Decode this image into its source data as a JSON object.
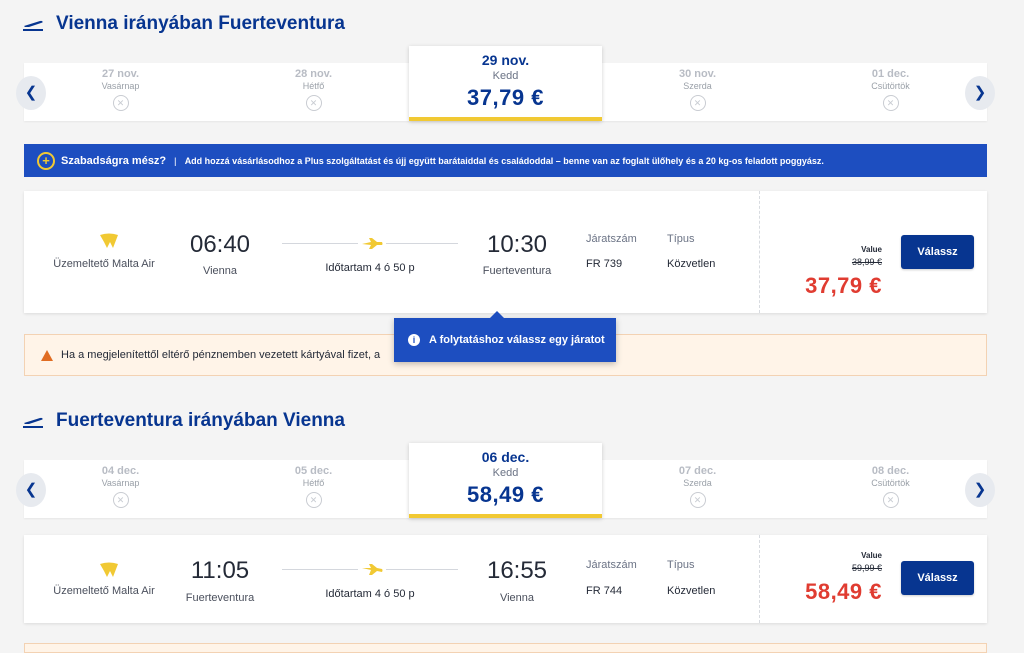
{
  "outbound": {
    "title": "Vienna irányában Fuerteventura",
    "days": [
      {
        "date": "27 nov.",
        "weekday": "Vasárnap"
      },
      {
        "date": "28 nov.",
        "weekday": "Hétfő"
      },
      {
        "date": "29 nov.",
        "weekday": "Kedd",
        "price": "37,79 €"
      },
      {
        "date": "30 nov.",
        "weekday": "Szerda"
      },
      {
        "date": "01 dec.",
        "weekday": "Csütörtök"
      }
    ],
    "flight": {
      "operator": "Üzemeltető Malta Air",
      "dep_time": "06:40",
      "dep_city": "Vienna",
      "duration": "Időtartam 4 ó 50 p",
      "arr_time": "10:30",
      "arr_city": "Fuerteventura",
      "flight_no_label": "Járatszám",
      "flight_no": "FR 739",
      "type_label": "Típus",
      "type": "Közvetlen",
      "fare_label": "Value",
      "old_price": "38,99 €",
      "price": "37,79 €",
      "select_label": "Válassz"
    }
  },
  "promo": {
    "heading": "Szabadságra mész?",
    "separator": "|",
    "text": "Add hozzá vásárlásodhoz a Plus szolgáltatást és újj együtt barátaiddal és családoddal – benne van az foglalt ülőhely és a 20 kg-os feladott poggyász."
  },
  "warning": {
    "text": "Ha a megjelenítettől eltérő pénznemben vezetett kártyával fizet, a"
  },
  "tooltip": {
    "text": "A folytatáshoz válassz egy járatot"
  },
  "inbound": {
    "title": "Fuerteventura irányában Vienna",
    "days": [
      {
        "date": "04 dec.",
        "weekday": "Vasárnap"
      },
      {
        "date": "05 dec.",
        "weekday": "Hétfő"
      },
      {
        "date": "06 dec.",
        "weekday": "Kedd",
        "price": "58,49 €"
      },
      {
        "date": "07 dec.",
        "weekday": "Szerda"
      },
      {
        "date": "08 dec.",
        "weekday": "Csütörtök"
      }
    ],
    "flight": {
      "operator": "Üzemeltető Malta Air",
      "dep_time": "11:05",
      "dep_city": "Fuerteventura",
      "duration": "Időtartam 4 ó 50 p",
      "arr_time": "16:55",
      "arr_city": "Vienna",
      "flight_no_label": "Járatszám",
      "flight_no": "FR 744",
      "type_label": "Típus",
      "type": "Közvetlen",
      "fare_label": "Value",
      "old_price": "59,99 €",
      "price": "58,49 €",
      "select_label": "Válassz"
    }
  },
  "colors": {
    "brand": "#073590",
    "accent": "#f1c933",
    "price": "#e03c31",
    "banner": "#1d4ec0"
  },
  "icons": {
    "section": "plane-takeoff-icon",
    "flight": "plane-icon",
    "no_flight": "no-flight-icon",
    "prev": "chevron-left-icon",
    "next": "chevron-right-icon",
    "info": "info-icon",
    "warning": "warning-icon",
    "operator": "ryanair-harp-icon",
    "promo": "plus-circle-icon"
  }
}
